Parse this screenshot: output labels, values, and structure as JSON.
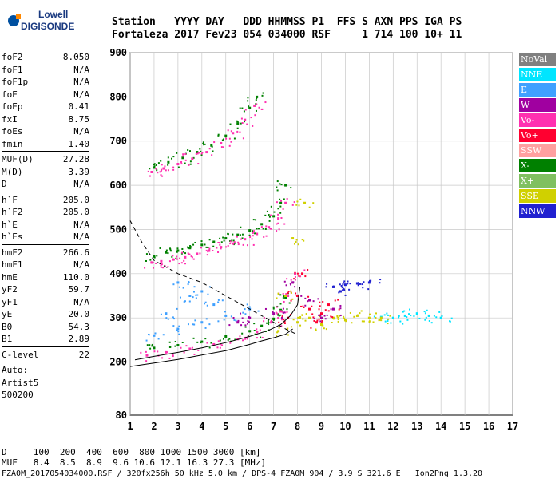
{
  "logo": {
    "line1": "Lowell",
    "line2": "DIGISONDE"
  },
  "header": {
    "line1": "Station   YYYY DAY   DDD HHMMSS P1  FFS S AXN PPS IGA PS",
    "line2": "Fortaleza 2017 Fev23 054 034000 RSF     1 714 100 10+ 11"
  },
  "params": {
    "group1": [
      {
        "label": "foF2",
        "value": "8.050"
      },
      {
        "label": "foF1",
        "value": "N/A"
      },
      {
        "label": "foF1p",
        "value": "N/A"
      },
      {
        "label": "foE",
        "value": "N/A"
      },
      {
        "label": "foEp",
        "value": "0.41"
      },
      {
        "label": "fxI",
        "value": "8.75"
      },
      {
        "label": "foEs",
        "value": "N/A"
      },
      {
        "label": "fmin",
        "value": "1.40"
      }
    ],
    "group2": [
      {
        "label": "MUF(D)",
        "value": "27.28"
      },
      {
        "label": "M(D)",
        "value": "3.39"
      },
      {
        "label": "D",
        "value": "N/A"
      }
    ],
    "group3": [
      {
        "label": "h`F",
        "value": "205.0"
      },
      {
        "label": "h`F2",
        "value": "205.0"
      },
      {
        "label": "h`E",
        "value": "N/A"
      },
      {
        "label": "h`Es",
        "value": "N/A"
      }
    ],
    "group4": [
      {
        "label": "hmF2",
        "value": "266.6"
      },
      {
        "label": "hmF1",
        "value": "N/A"
      },
      {
        "label": "hmE",
        "value": "110.0"
      },
      {
        "label": "yF2",
        "value": "59.7"
      },
      {
        "label": "yF1",
        "value": "N/A"
      },
      {
        "label": "yE",
        "value": "20.0"
      },
      {
        "label": "B0",
        "value": "54.3"
      },
      {
        "label": "B1",
        "value": "2.89"
      }
    ],
    "group5": [
      {
        "label": "C-level",
        "value": "22"
      }
    ],
    "auto_lines": [
      "Auto:",
      "Artist5",
      "500200"
    ]
  },
  "legend": [
    {
      "label": "NoVal",
      "color": "#808080"
    },
    {
      "label": "NNE",
      "color": "#00e5ff"
    },
    {
      "label": "E",
      "color": "#3fa0ff"
    },
    {
      "label": "W",
      "color": "#a000a0"
    },
    {
      "label": "Vo-",
      "color": "#ff30b0"
    },
    {
      "label": "Vo+",
      "color": "#ff0030"
    },
    {
      "label": "SSW",
      "color": "#ffa0a0"
    },
    {
      "label": "X-",
      "color": "#008000"
    },
    {
      "label": "X+",
      "color": "#80c060"
    },
    {
      "label": "SSE",
      "color": "#d0d000"
    },
    {
      "label": "NNW",
      "color": "#2020d0"
    }
  ],
  "footer": {
    "line1": "D     100  200  400  600  800 1000 1500 3000 [km]",
    "line2": "MUF   8.4  8.5  8.9  9.6 10.6 12.1 16.3 27.3 [MHz]",
    "line3": "FZA0M_2017054034000.RSF / 320fx256h 50 kHz 5.0 km / DPS-4 FZA0M 904 / 3.9 S 321.6 E   Ion2Png 1.3.20"
  },
  "chart_data": {
    "type": "scatter",
    "x_ticks": [
      1,
      2,
      3,
      4,
      5,
      6,
      7,
      8,
      9,
      10,
      11,
      12,
      13,
      14,
      15,
      16,
      17
    ],
    "y_ticks": [
      200,
      300,
      400,
      500,
      600,
      700,
      800,
      900
    ],
    "y_tick_labels": [
      "200",
      "300",
      "400",
      "500",
      "600",
      "700",
      "800",
      "900"
    ],
    "x_tick_labels": [
      "1",
      "2",
      "3",
      "4",
      "5",
      "6",
      "7",
      "8",
      "9",
      "10",
      "11",
      "12",
      "13",
      "14",
      "15",
      "16",
      "17"
    ],
    "y_bottom_label": "80",
    "xlim": [
      1,
      17
    ],
    "ylim": [
      80,
      900
    ],
    "grid": true,
    "grid_x": [
      1,
      2,
      3,
      4,
      5,
      6,
      7,
      8,
      9,
      10,
      11,
      12,
      13,
      14,
      15,
      16,
      17
    ],
    "grid_y": [
      200,
      300,
      400,
      500,
      600,
      700,
      800,
      900
    ],
    "traces": [
      {
        "name": "X-",
        "color": "#008000",
        "points": [
          [
            2.0,
            440
          ],
          [
            2.5,
            448
          ],
          [
            3.0,
            452
          ],
          [
            3.5,
            458
          ],
          [
            4.0,
            465
          ],
          [
            4.5,
            472
          ],
          [
            5.0,
            480
          ],
          [
            5.5,
            488
          ],
          [
            6.0,
            498
          ],
          [
            6.5,
            512
          ],
          [
            7.0,
            530
          ],
          [
            7.3,
            560
          ],
          [
            7.5,
            600
          ]
        ]
      },
      {
        "name": "Vo-",
        "color": "#ff30b0",
        "points": [
          [
            1.9,
            425
          ],
          [
            2.3,
            428
          ],
          [
            2.8,
            432
          ],
          [
            3.3,
            437
          ],
          [
            3.8,
            445
          ],
          [
            4.3,
            452
          ],
          [
            4.8,
            460
          ],
          [
            5.3,
            468
          ],
          [
            5.8,
            478
          ],
          [
            6.3,
            490
          ],
          [
            6.8,
            505
          ],
          [
            7.2,
            525
          ],
          [
            7.5,
            560
          ]
        ]
      },
      {
        "name": "X-",
        "color": "#008000",
        "points": [
          [
            2.0,
            640
          ],
          [
            2.6,
            652
          ],
          [
            3.2,
            662
          ],
          [
            3.8,
            675
          ],
          [
            4.4,
            690
          ],
          [
            5.0,
            712
          ],
          [
            5.5,
            740
          ],
          [
            6.0,
            775
          ],
          [
            6.3,
            800
          ]
        ]
      },
      {
        "name": "Vo-",
        "color": "#ff30b0",
        "points": [
          [
            1.9,
            630
          ],
          [
            2.4,
            638
          ],
          [
            3.0,
            648
          ],
          [
            3.6,
            660
          ],
          [
            4.2,
            675
          ],
          [
            4.8,
            695
          ],
          [
            5.3,
            718
          ],
          [
            5.8,
            748
          ],
          [
            6.2,
            780
          ]
        ]
      },
      {
        "name": "X-",
        "color": "#008000",
        "points": [
          [
            2.0,
            232
          ],
          [
            3.0,
            238
          ],
          [
            4.0,
            246
          ],
          [
            5.0,
            258
          ],
          [
            6.0,
            270
          ],
          [
            6.5,
            282
          ],
          [
            7.0,
            298
          ],
          [
            7.3,
            318
          ],
          [
            7.5,
            345
          ]
        ]
      },
      {
        "name": "Vo-",
        "color": "#ff30b0",
        "points": [
          [
            1.7,
            215
          ],
          [
            2.5,
            222
          ],
          [
            3.5,
            230
          ],
          [
            4.5,
            240
          ],
          [
            5.5,
            252
          ],
          [
            6.3,
            268
          ],
          [
            6.9,
            290
          ],
          [
            7.3,
            315
          ],
          [
            7.6,
            350
          ],
          [
            7.9,
            400
          ]
        ]
      },
      {
        "name": "E",
        "color": "#3fa0ff",
        "points": [
          [
            2.0,
            260
          ],
          [
            3.0,
            275
          ],
          [
            4.0,
            290
          ],
          [
            5.0,
            305
          ],
          [
            6.0,
            320
          ],
          [
            2.5,
            310
          ],
          [
            3.5,
            350
          ],
          [
            4.5,
            330
          ],
          [
            3.0,
            380
          ],
          [
            4.0,
            360
          ]
        ]
      },
      {
        "name": "NNE",
        "color": "#00e5ff",
        "points": [
          [
            12.0,
            300
          ],
          [
            12.5,
            305
          ],
          [
            13.0,
            310
          ],
          [
            13.5,
            305
          ],
          [
            14.0,
            300
          ],
          [
            11.5,
            302
          ]
        ]
      },
      {
        "name": "SSE",
        "color": "#d0d000",
        "points": [
          [
            7.2,
            270
          ],
          [
            8.0,
            290
          ],
          [
            8.5,
            300
          ],
          [
            9.0,
            285
          ],
          [
            9.5,
            300
          ],
          [
            10.0,
            295
          ],
          [
            10.5,
            305
          ],
          [
            11.0,
            300
          ],
          [
            11.5,
            300
          ],
          [
            7.5,
            350
          ],
          [
            7.8,
            480
          ],
          [
            8.3,
            560
          ]
        ]
      },
      {
        "name": "Vo+",
        "color": "#ff0030",
        "points": [
          [
            7.6,
            300
          ],
          [
            8.0,
            350
          ],
          [
            8.2,
            400
          ],
          [
            8.5,
            320
          ],
          [
            9.0,
            310
          ],
          [
            9.3,
            330
          ],
          [
            8.8,
            290
          ]
        ]
      },
      {
        "name": "W",
        "color": "#a000a0",
        "points": [
          [
            5.5,
            290
          ],
          [
            6.0,
            300
          ],
          [
            7.0,
            310
          ],
          [
            8.5,
            340
          ],
          [
            9.0,
            300
          ],
          [
            9.5,
            320
          ],
          [
            7.8,
            380
          ]
        ]
      },
      {
        "name": "NNW",
        "color": "#2020d0",
        "points": [
          [
            9.5,
            370
          ],
          [
            10.0,
            375
          ],
          [
            10.5,
            378
          ],
          [
            11.0,
            380
          ],
          [
            9.8,
            360
          ]
        ]
      }
    ],
    "curves": [
      {
        "style": "dashed",
        "points": [
          [
            1.0,
            520
          ],
          [
            1.5,
            470
          ],
          [
            2.0,
            430
          ],
          [
            3.0,
            400
          ],
          [
            4.0,
            380
          ],
          [
            5.0,
            350
          ],
          [
            6.0,
            320
          ],
          [
            7.0,
            290
          ],
          [
            7.5,
            275
          ],
          [
            8.0,
            262
          ]
        ]
      },
      {
        "style": "solid",
        "points": [
          [
            1.0,
            190
          ],
          [
            2.0,
            198
          ],
          [
            3.0,
            206
          ],
          [
            4.0,
            216
          ],
          [
            5.0,
            226
          ],
          [
            6.0,
            240
          ],
          [
            6.5,
            248
          ],
          [
            7.0,
            255
          ],
          [
            7.5,
            263
          ],
          [
            7.8,
            275
          ]
        ]
      },
      {
        "style": "solid",
        "points": [
          [
            1.2,
            205
          ],
          [
            2.0,
            213
          ],
          [
            3.0,
            222
          ],
          [
            4.0,
            232
          ],
          [
            5.0,
            244
          ],
          [
            6.0,
            258
          ],
          [
            6.8,
            272
          ],
          [
            7.3,
            285
          ],
          [
            7.7,
            305
          ],
          [
            8.0,
            330
          ],
          [
            8.1,
            370
          ]
        ]
      }
    ]
  }
}
